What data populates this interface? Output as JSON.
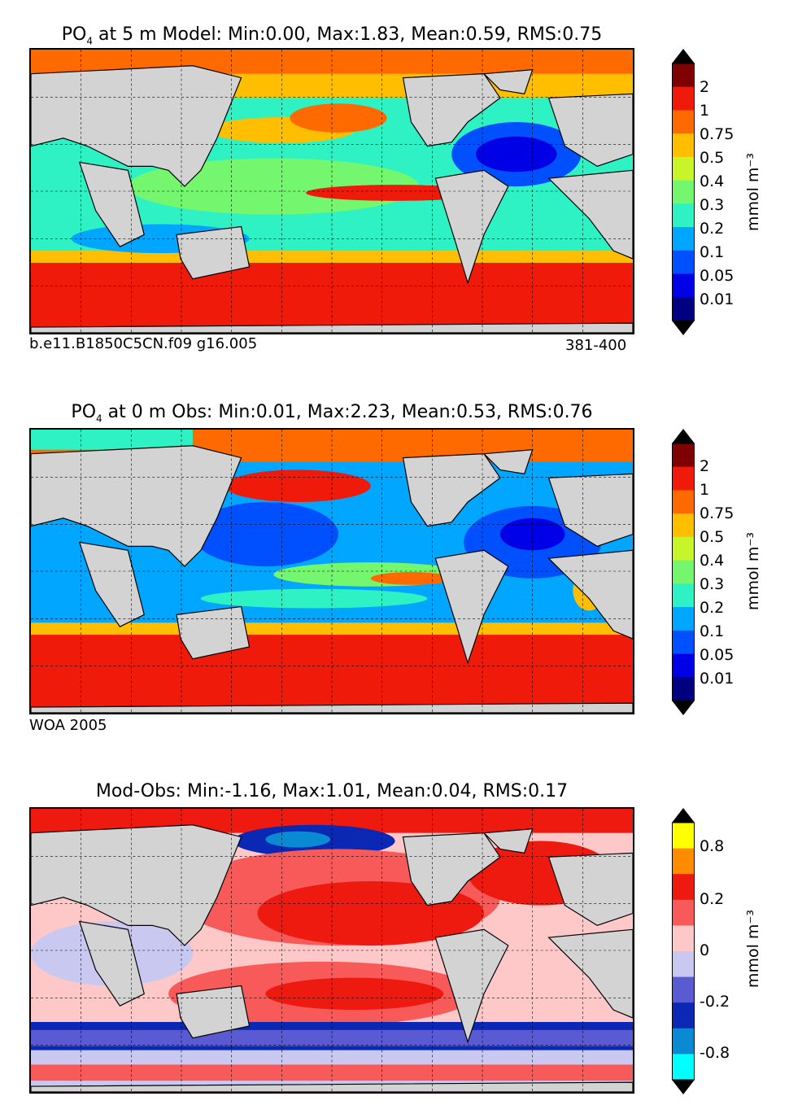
{
  "panels": [
    {
      "title_prefix": "PO",
      "title_sub": "4",
      "title_rest": " at 5 m Model: Min:0.00, Max:1.83, Mean:0.59, RMS:0.75",
      "caption_left": "b.e11.B1850C5CN.f09 g16.005",
      "caption_right": "381-400",
      "colorbar": {
        "ticks": [
          "2",
          "1",
          "0.75",
          "0.5",
          "0.4",
          "0.3",
          "0.2",
          "0.1",
          "0.05",
          "0.01"
        ],
        "colors": [
          "#7f0000",
          "#ef1a0a",
          "#ff6a00",
          "#ffbf00",
          "#c8f52a",
          "#74f76e",
          "#2ef2c3",
          "#00a6ff",
          "#0050ff",
          "#0000e6",
          "#000080"
        ],
        "unit": "mmol m⁻³"
      }
    },
    {
      "title_prefix": "PO",
      "title_sub": "4",
      "title_rest": " at 0 m Obs: Min:0.01, Max:2.23, Mean:0.53, RMS:0.76",
      "caption_left": "WOA 2005",
      "caption_right": "",
      "colorbar": {
        "ticks": [
          "2",
          "1",
          "0.75",
          "0.5",
          "0.4",
          "0.3",
          "0.2",
          "0.1",
          "0.05",
          "0.01"
        ],
        "colors": [
          "#7f0000",
          "#ef1a0a",
          "#ff6a00",
          "#ffbf00",
          "#c8f52a",
          "#74f76e",
          "#2ef2c3",
          "#00a6ff",
          "#0050ff",
          "#0000e6",
          "#000080"
        ],
        "unit": "mmol m⁻³"
      }
    },
    {
      "title_prefix": "",
      "title_sub": "",
      "title_rest": "Mod-Obs: Min:-1.16, Max:1.01, Mean:0.04, RMS:0.17",
      "caption_left": "",
      "caption_right": "",
      "colorbar": {
        "ticks": [
          "0.8",
          "0.2",
          "0",
          "-0.2",
          "-0.8"
        ],
        "colors": [
          "#ffff00",
          "#ff8c00",
          "#ee1a10",
          "#f85a5a",
          "#ffc8c8",
          "#c8c8f0",
          "#5a5ad2",
          "#0a28b4",
          "#0a8ad2",
          "#00ffff"
        ],
        "unit": "mmol m⁻³"
      }
    }
  ]
}
